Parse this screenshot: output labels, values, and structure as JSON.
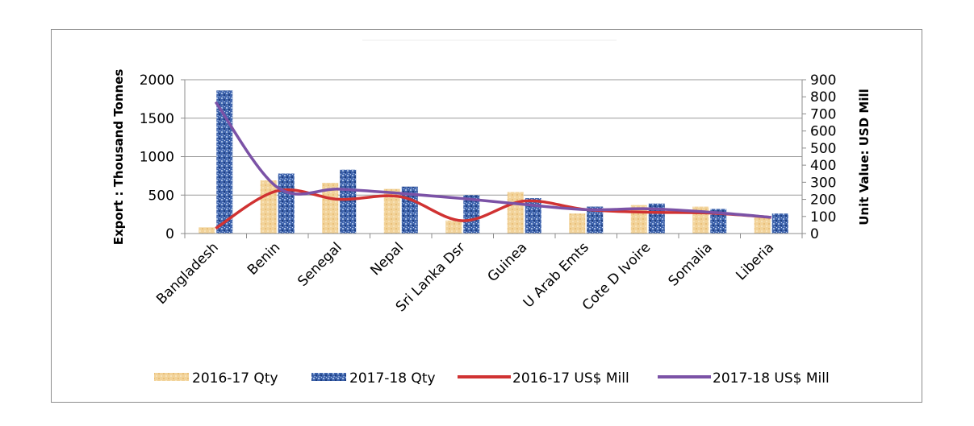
{
  "chart_data": {
    "type": "bar",
    "categories": [
      "Bangladesh",
      "Benin",
      "Senegal",
      "Nepal",
      "Sri Lanka Dsr",
      "Guinea",
      "U Arab Emts",
      "Cote D Ivoire",
      "Somalia",
      "Liberia"
    ],
    "series": [
      {
        "name": "2016-17 Qty",
        "type": "bar",
        "axis": "left",
        "color": "#f2d39a",
        "values": [
          80,
          690,
          660,
          580,
          170,
          540,
          260,
          370,
          350,
          230
        ]
      },
      {
        "name": "2017-18 Qty",
        "type": "bar",
        "axis": "left",
        "color": "#3a5fa8",
        "values": [
          1860,
          780,
          830,
          610,
          500,
          460,
          350,
          390,
          320,
          260
        ]
      },
      {
        "name": "2016-17 US$ Mill",
        "type": "line",
        "axis": "right",
        "color": "#d03232",
        "values": [
          30,
          250,
          200,
          215,
          75,
          190,
          140,
          125,
          120,
          95
        ]
      },
      {
        "name": "2017-18 US$ Mill",
        "type": "line",
        "axis": "right",
        "color": "#7b52a6",
        "values": [
          770,
          270,
          260,
          235,
          205,
          170,
          140,
          145,
          125,
          95
        ]
      }
    ],
    "ylabel": "Export : Thousand Tonnes",
    "ylim": [
      0,
      2000
    ],
    "yticks": [
      0,
      500,
      1000,
      1500,
      2000
    ],
    "y2label": "Unit Value: USD Mill",
    "y2lim": [
      0,
      900
    ],
    "y2ticks": [
      0,
      100,
      200,
      300,
      400,
      500,
      600,
      700,
      800,
      900
    ],
    "grid": true,
    "legend_position": "bottom"
  }
}
